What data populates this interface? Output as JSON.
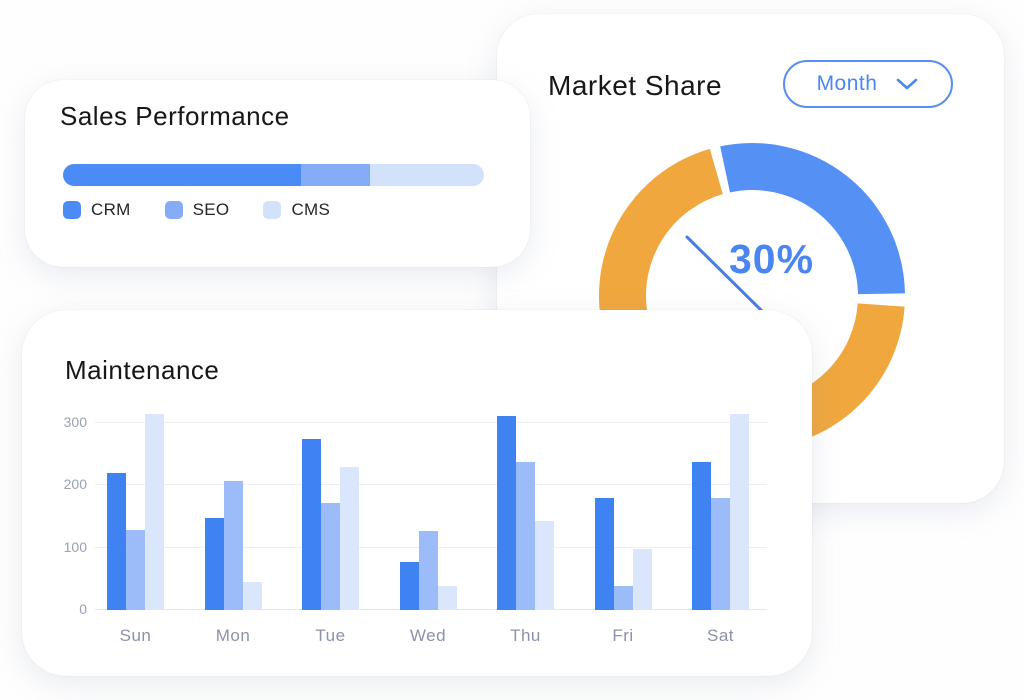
{
  "colors": {
    "card_bg": "#ffffff",
    "title_text": "#17171a",
    "axis_text": "#99a1b3",
    "day_text": "#8b93a8",
    "accent_blue": "#4a87f2",
    "dropdown_border": "#5b8ef0",
    "gridline": "#eceef4",
    "leader_line": "#4a7ce2"
  },
  "sales_card": {
    "title": "Sales Performance",
    "progress_segments": [
      {
        "label": "CRM",
        "percent": 56.5,
        "color": "#4a8bf6"
      },
      {
        "label": "SEO",
        "percent": 16.4,
        "color": "#84acf7"
      },
      {
        "label": "CMS",
        "percent": 27.1,
        "color": "#d2e2fb"
      }
    ]
  },
  "market_card": {
    "title": "Market Share",
    "dropdown_value": "Month",
    "center_label": "30%",
    "chart_data": {
      "type": "pie",
      "donut": true,
      "title": "Market Share",
      "annotation": "30%",
      "slices": [
        {
          "name": "highlighted share",
          "value_pct": 30,
          "color": "#5590f5",
          "start_deg": -12,
          "end_deg": 89
        },
        {
          "name": "remaining share",
          "value_pct": 70,
          "color": "#f0a73d",
          "start_deg": 94,
          "end_deg": 344
        }
      ]
    }
  },
  "maintenance_card": {
    "title": "Maintenance",
    "chart_data": {
      "type": "bar",
      "title": "Maintenance",
      "categories": [
        "Sun",
        "Mon",
        "Tue",
        "Wed",
        "Thu",
        "Fri",
        "Sat"
      ],
      "series": [
        {
          "name": "dark blue series",
          "color": "#3f83f3",
          "values": [
            220,
            147,
            275,
            77,
            312,
            180,
            237
          ]
        },
        {
          "name": "medium blue series",
          "color": "#9bbcf8",
          "values": [
            128,
            207,
            172,
            127,
            237,
            38,
            180
          ]
        },
        {
          "name": "light blue series",
          "color": "#d9e6fc",
          "values": [
            315,
            45,
            230,
            38,
            143,
            98,
            315
          ]
        }
      ],
      "yticks": [
        0,
        100,
        200,
        300
      ],
      "ylim": [
        0,
        330
      ],
      "grid": true,
      "legend_position": "none"
    }
  }
}
